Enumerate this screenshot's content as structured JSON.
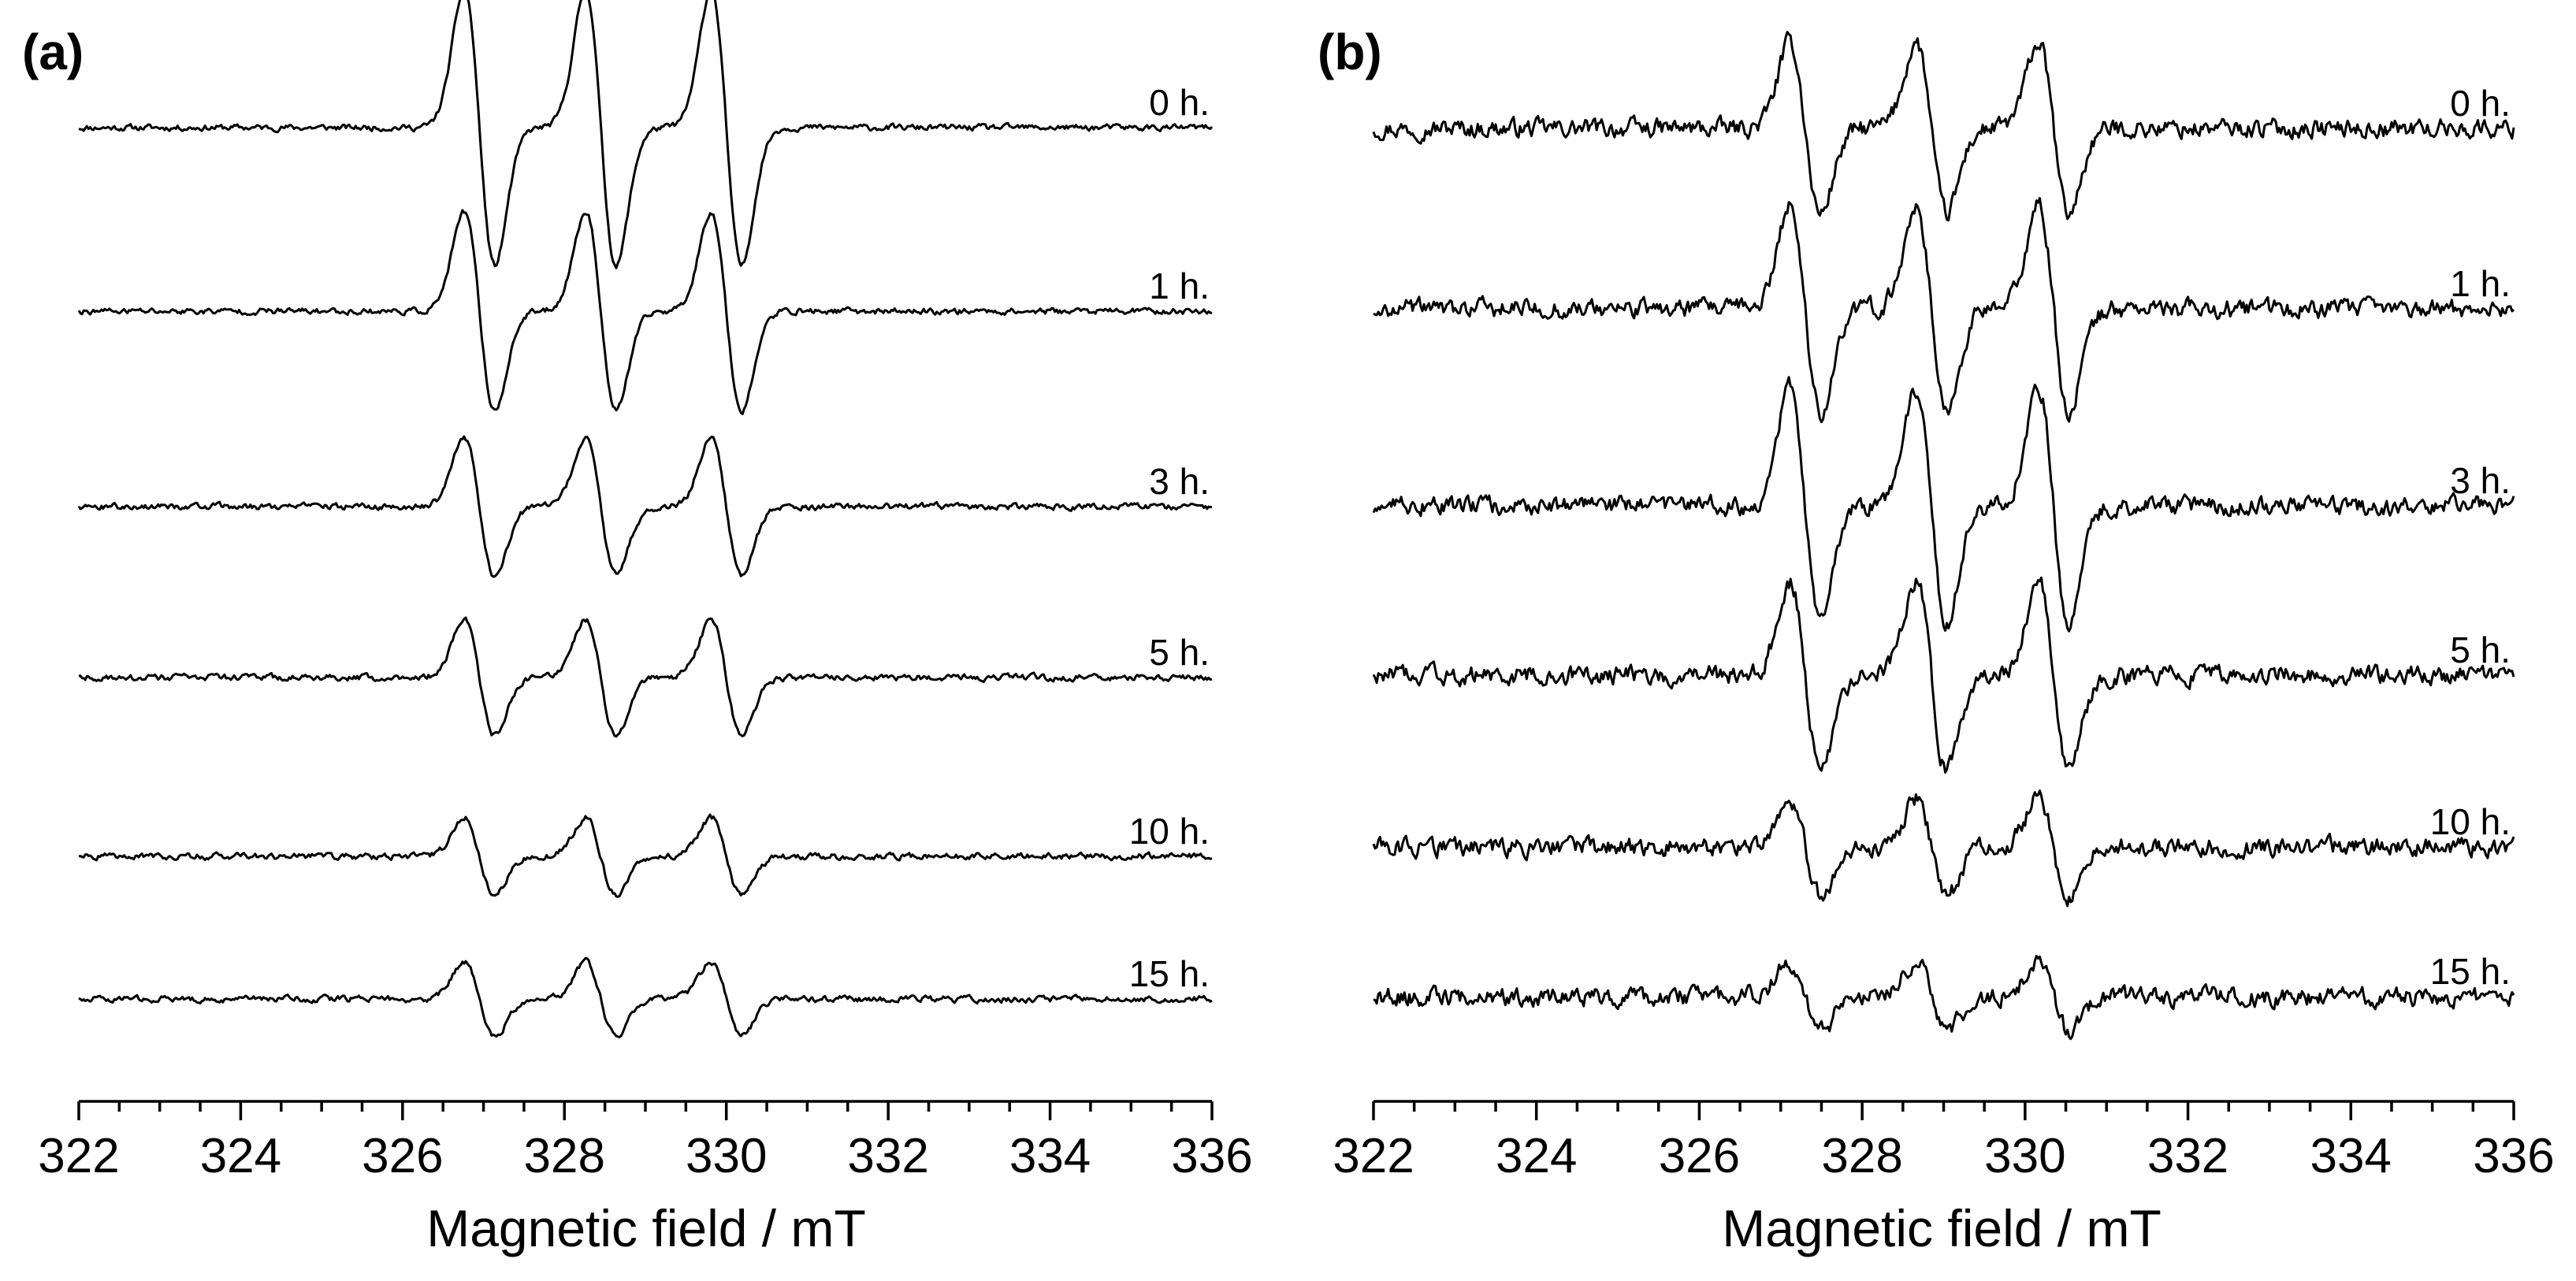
{
  "chart_data": [
    {
      "type": "line",
      "panel_label": "(a)",
      "xlabel": "Magnetic field / mT",
      "ylabel": "",
      "xlim": [
        322,
        336
      ],
      "xticks": [
        "322",
        "324",
        "326",
        "328",
        "330",
        "332",
        "334",
        "336"
      ],
      "y_axis_shown": false,
      "grid": false,
      "line_centers_mT": [
        326.95,
        328.45,
        330.0
      ],
      "noise": 0.04,
      "series": [
        {
          "name": "0 h.",
          "amplitude": 1.0
        },
        {
          "name": "1 h.",
          "amplitude": 0.72
        },
        {
          "name": "3 h.",
          "amplitude": 0.5
        },
        {
          "name": "5 h.",
          "amplitude": 0.42
        },
        {
          "name": "10 h.",
          "amplitude": 0.28
        },
        {
          "name": "15 h.",
          "amplitude": 0.27
        }
      ]
    },
    {
      "type": "line",
      "panel_label": "(b)",
      "xlabel": "Magnetic field / mT",
      "ylabel": "",
      "xlim": [
        322,
        336
      ],
      "xticks": [
        "322",
        "324",
        "326",
        "328",
        "330",
        "332",
        "334",
        "336"
      ],
      "y_axis_shown": false,
      "grid": false,
      "line_centers_mT": [
        327.3,
        328.85,
        330.35
      ],
      "noise": 0.12,
      "series": [
        {
          "name": "0 h.",
          "amplitude": 0.62
        },
        {
          "name": "1 h.",
          "amplitude": 0.75
        },
        {
          "name": "3 h.",
          "amplitude": 0.85
        },
        {
          "name": "5 h.",
          "amplitude": 0.68
        },
        {
          "name": "10 h.",
          "amplitude": 0.36
        },
        {
          "name": "15 h.",
          "amplitude": 0.26
        }
      ]
    }
  ]
}
